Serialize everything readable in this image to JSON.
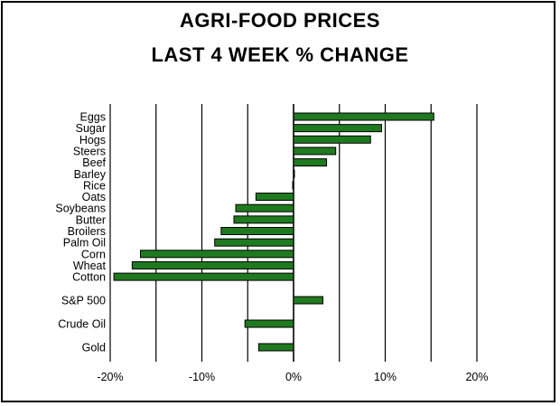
{
  "chart_data": {
    "type": "bar",
    "orientation": "horizontal",
    "title": "AGRI-FOOD PRICES",
    "subtitle": "LAST 4 WEEK % CHANGE",
    "categories": [
      "Eggs",
      "Sugar",
      "Hogs",
      "Steers",
      "Beef",
      "Barley",
      "Rice",
      "Oats",
      "Soybeans",
      "Butter",
      "Broilers",
      "Palm Oil",
      "Corn",
      "Wheat",
      "Cotton",
      "S&P 500",
      "Crude Oil",
      "Gold"
    ],
    "values": [
      15.3,
      9.6,
      8.4,
      4.6,
      3.6,
      0.0,
      -0.1,
      -4.1,
      -6.3,
      -6.5,
      -7.9,
      -8.6,
      -16.7,
      -17.6,
      -19.6,
      3.2,
      -5.3,
      -3.8
    ],
    "xlim": [
      -20,
      20
    ],
    "xticks": [
      "-20%",
      "-10%",
      "0%",
      "10%",
      "20%"
    ],
    "grid": "vertical",
    "xlabel": "",
    "ylabel": "",
    "colors": {
      "bar_fill": "#1f7a1f",
      "bar_stroke": "#000000",
      "background": "#ffffff",
      "grid": "#000000"
    }
  }
}
